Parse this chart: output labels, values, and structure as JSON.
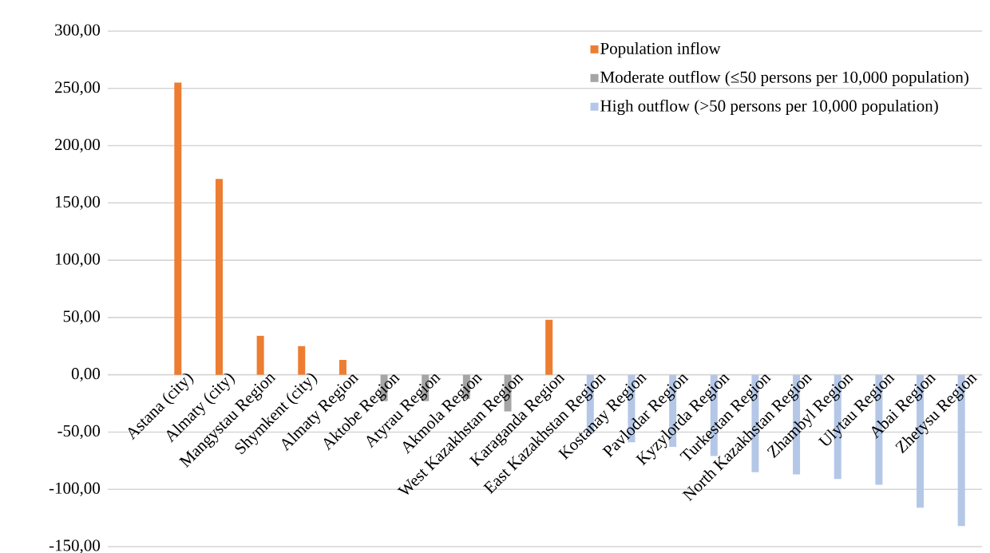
{
  "chart_data": {
    "type": "bar",
    "categories": [
      "Astana (city)",
      "Almaty (city)",
      "Mangystau Region",
      "Shymkent (city)",
      "Almaty Region",
      "Aktobe Region",
      "Atyrau Region",
      "Akmola Region",
      "West Kazakhstan Region",
      "Karaganda Region",
      "East Kazakhstan Region",
      "Kostanay Region",
      "Pavlodar Region",
      "Kyzylorda Region",
      "Turkestan Region",
      "North Kazakhstan Region",
      "Zhambyl Region",
      "Ulytau Region",
      "Abai Region",
      "Zhetysu Region"
    ],
    "series": [
      {
        "name": "Population inflow",
        "color": "#ed7d31",
        "values": [
          255,
          171,
          34,
          25,
          13,
          null,
          null,
          null,
          null,
          48,
          null,
          null,
          null,
          null,
          null,
          null,
          null,
          null,
          null,
          null
        ]
      },
      {
        "name": "Moderate outflow (≤50 persons per 10,000 population)",
        "color": "#a5a5a5",
        "values": [
          null,
          null,
          null,
          null,
          null,
          -23,
          -23,
          -21,
          -32,
          null,
          null,
          null,
          null,
          null,
          null,
          null,
          null,
          null,
          null,
          null
        ]
      },
      {
        "name": "High outflow (>50 persons per 10,000 population)",
        "color": "#b4c7e7",
        "values": [
          null,
          null,
          null,
          null,
          null,
          null,
          null,
          null,
          null,
          null,
          -51,
          -59,
          -63,
          -71,
          -85,
          -87,
          -91,
          -96,
          -116,
          -132
        ]
      }
    ],
    "ylim": [
      -150,
      300
    ],
    "yticks": [
      {
        "value": -150,
        "label": "-150,00"
      },
      {
        "value": -100,
        "label": "-100,00"
      },
      {
        "value": -50,
        "label": "-50,00"
      },
      {
        "value": 0,
        "label": "0,00"
      },
      {
        "value": 50,
        "label": "50,00"
      },
      {
        "value": 100,
        "label": "100,00"
      },
      {
        "value": 150,
        "label": "150,00"
      },
      {
        "value": 200,
        "label": "200,00"
      },
      {
        "value": 250,
        "label": "250,00"
      },
      {
        "value": 300,
        "label": "300,00"
      }
    ],
    "grid": "y",
    "legend": "top right"
  }
}
